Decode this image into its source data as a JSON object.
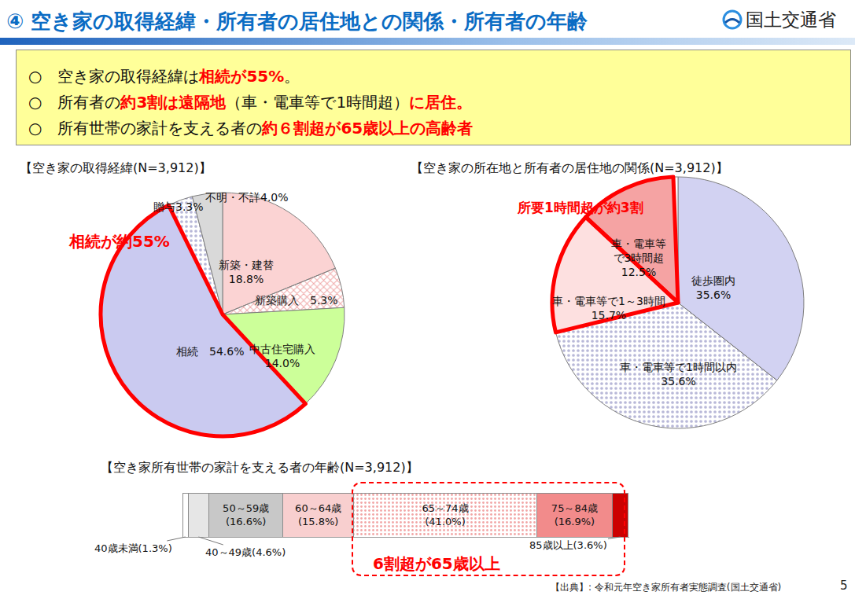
{
  "header": {
    "title": "④ 空き家の取得経緯・所有者の居住地との関係・所有者の年齢",
    "organization": "国土交通省"
  },
  "summary": [
    [
      {
        "text": "○　空き家の取得経緯は"
      },
      {
        "text": "相続が55%",
        "emphasis": true
      },
      {
        "text": "。"
      }
    ],
    [
      {
        "text": "○　所有者の"
      },
      {
        "text": "約3割は遠隔地",
        "emphasis": true
      },
      {
        "text": "（車・電車等で1時間超）"
      },
      {
        "text": "に居住。",
        "emphasis": true
      }
    ],
    [
      {
        "text": "○　所有世帯の家計を支える者の"
      },
      {
        "text": "約６割超が65歳以上の高齢者",
        "emphasis": true
      }
    ]
  ],
  "chart_data": [
    {
      "type": "pie",
      "title": "【空き家の取得経緯(N=3,912)】",
      "categories": [
        "新築・建替",
        "新築購入",
        "中古住宅購入",
        "相続",
        "贈与",
        "不明・不詳"
      ],
      "values": [
        18.8,
        5.3,
        14.0,
        54.6,
        3.3,
        4.0
      ],
      "value_labels": [
        "新築・建替\n18.8%",
        "新築購入　5.3%",
        "中古住宅購入\n14.0%",
        "相続　54.6%",
        "贈与3.3%",
        "不明・不詳4.0%"
      ],
      "colors": [
        "#fbd3d3",
        "#fbe4e4",
        "#ccff99",
        "#cacaf0",
        "#f2f2f8",
        "#d9d9d9"
      ],
      "data_labels": true,
      "annotations": [
        {
          "text": "相続が約55%",
          "categories": [
            "相続"
          ]
        }
      ]
    },
    {
      "type": "pie",
      "title": "【空き家の所在地と所有者の居住地の関係(N=3,912)】",
      "categories": [
        "徒歩圏内",
        "車・電車等で1時間以内",
        "車・電車等で1～3時間",
        "車・電車等で3時間超",
        null
      ],
      "values": [
        35.6,
        35.6,
        15.7,
        12.5,
        0.6
      ],
      "value_labels": [
        "徒歩圏内\n35.6%",
        "車・電車等で1時間以内\n35.6%",
        "車・電車等で1～3時間\n15.7%",
        "車・電車等\nで3時間超\n12.5%",
        null
      ],
      "colors": [
        "#d2d2f2",
        "#ededf8",
        "#fde0e0",
        "#f5a3a3",
        "#ffffff"
      ],
      "data_labels": true,
      "annotations": [
        {
          "text": "所要1時間超が約3割",
          "categories": [
            "車・電車等で1～3時間",
            "車・電車等で3時間超"
          ]
        }
      ]
    },
    {
      "type": "bar",
      "title": "【空き家所有世帯の家計を支える者の年齢(N=3,912)】",
      "orientation": "horizontal",
      "stacked": true,
      "categories": [
        null
      ],
      "series": [
        {
          "name": "40歳未満",
          "color": "#ffffff",
          "values": [
            1.3
          ],
          "value_labels": [
            "40歳未満(1.3%)"
          ]
        },
        {
          "name": "40～49歳",
          "color": "#e6e6e6",
          "values": [
            4.6
          ],
          "value_labels": [
            "40～49歳(4.6%)"
          ]
        },
        {
          "name": "50～59歳",
          "color": "#c8c8c8",
          "values": [
            16.6
          ],
          "value_labels": [
            "50～59歳\n(16.6%)"
          ]
        },
        {
          "name": "60～64歳",
          "color": "#f8cfcf",
          "values": [
            15.8
          ],
          "value_labels": [
            "60～64歳\n(15.8%)"
          ]
        },
        {
          "name": "65～74歳",
          "color": "#fbe3e3",
          "values": [
            41.0
          ],
          "value_labels": [
            "65～74歳\n(41.0%)"
          ]
        },
        {
          "name": "75～84歳",
          "color": "#f28b8b",
          "values": [
            16.9
          ],
          "value_labels": [
            "75～84歳\n(16.9%)"
          ]
        },
        {
          "name": "85歳以上",
          "color": "#cc0000",
          "values": [
            3.6
          ],
          "value_labels": [
            "85歳以上(3.6%)"
          ]
        }
      ],
      "xlim": [
        0,
        100
      ],
      "tick_labels": false,
      "data_labels": true,
      "annotations": [
        {
          "text": "6割超が65歳以上"
        }
      ]
    }
  ],
  "footer": {
    "source": "【出典】: 令和元年空き家所有者実態調査(国土交通省)",
    "page": 5
  }
}
